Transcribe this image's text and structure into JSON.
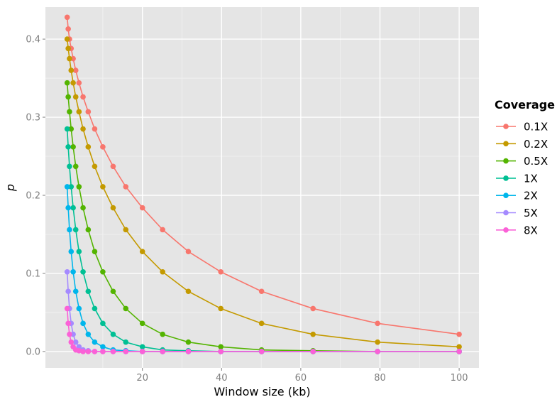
{
  "chart_data": {
    "type": "line",
    "xlabel": "Window size (kb)",
    "ylabel": "p",
    "xlim": [
      -4.5,
      105
    ],
    "ylim": [
      -0.021,
      0.441
    ],
    "x_ticks": [
      20,
      40,
      60,
      80,
      100
    ],
    "x_tick_labels": [
      "20",
      "40",
      "60",
      "80",
      "100"
    ],
    "y_ticks": [
      0.0,
      0.1,
      0.2,
      0.3,
      0.4
    ],
    "y_tick_labels": [
      "0.0",
      "0.1",
      "0.2",
      "0.3",
      "0.4"
    ],
    "grid": true,
    "legend": {
      "title": "Coverage",
      "position": "right"
    },
    "x": [
      1.0,
      1.26,
      1.58,
      2.0,
      2.51,
      3.16,
      3.98,
      5.01,
      6.31,
      7.94,
      10.0,
      12.6,
      15.8,
      20.0,
      25.1,
      31.6,
      39.8,
      50.1,
      63.1,
      79.4,
      100.0
    ],
    "series": [
      {
        "name": "0.1X",
        "color": "#F8766D",
        "values": [
          0.428,
          0.413,
          0.4,
          0.388,
          0.375,
          0.36,
          0.344,
          0.326,
          0.307,
          0.285,
          0.262,
          0.237,
          0.211,
          0.184,
          0.156,
          0.128,
          0.102,
          0.077,
          0.055,
          0.036,
          0.022
        ]
      },
      {
        "name": "0.2X",
        "color": "#C49A00",
        "values": [
          0.4,
          0.388,
          0.375,
          0.36,
          0.344,
          0.326,
          0.307,
          0.285,
          0.262,
          0.237,
          0.211,
          0.184,
          0.156,
          0.128,
          0.102,
          0.077,
          0.055,
          0.036,
          0.022,
          0.012,
          0.006
        ]
      },
      {
        "name": "0.5X",
        "color": "#53B400",
        "values": [
          0.344,
          0.326,
          0.307,
          0.285,
          0.262,
          0.237,
          0.211,
          0.184,
          0.156,
          0.128,
          0.102,
          0.077,
          0.055,
          0.036,
          0.022,
          0.012,
          0.006,
          0.002,
          0.001,
          0.0,
          0.0
        ]
      },
      {
        "name": "1X",
        "color": "#00C094",
        "values": [
          0.285,
          0.262,
          0.237,
          0.211,
          0.184,
          0.156,
          0.128,
          0.102,
          0.077,
          0.055,
          0.036,
          0.022,
          0.012,
          0.006,
          0.002,
          0.001,
          0.0,
          0.0,
          0.0,
          0.0,
          0.0
        ]
      },
      {
        "name": "2X",
        "color": "#00B6EB",
        "values": [
          0.211,
          0.184,
          0.156,
          0.128,
          0.102,
          0.077,
          0.055,
          0.036,
          0.022,
          0.012,
          0.006,
          0.002,
          0.001,
          0.0,
          0.0,
          0.0,
          0.0,
          0.0,
          0.0,
          0.0,
          0.0
        ]
      },
      {
        "name": "5X",
        "color": "#A58AFF",
        "values": [
          0.102,
          0.077,
          0.055,
          0.036,
          0.022,
          0.012,
          0.006,
          0.002,
          0.001,
          0.0,
          0.0,
          0.0,
          0.0,
          0.0,
          0.0,
          0.0,
          0.0,
          0.0,
          0.0,
          0.0,
          0.0
        ]
      },
      {
        "name": "8X",
        "color": "#FB61D7",
        "values": [
          0.055,
          0.036,
          0.022,
          0.012,
          0.006,
          0.002,
          0.001,
          0.0,
          0.0,
          0.0,
          0.0,
          0.0,
          0.0,
          0.0,
          0.0,
          0.0,
          0.0,
          0.0,
          0.0,
          0.0,
          0.0
        ]
      }
    ]
  }
}
